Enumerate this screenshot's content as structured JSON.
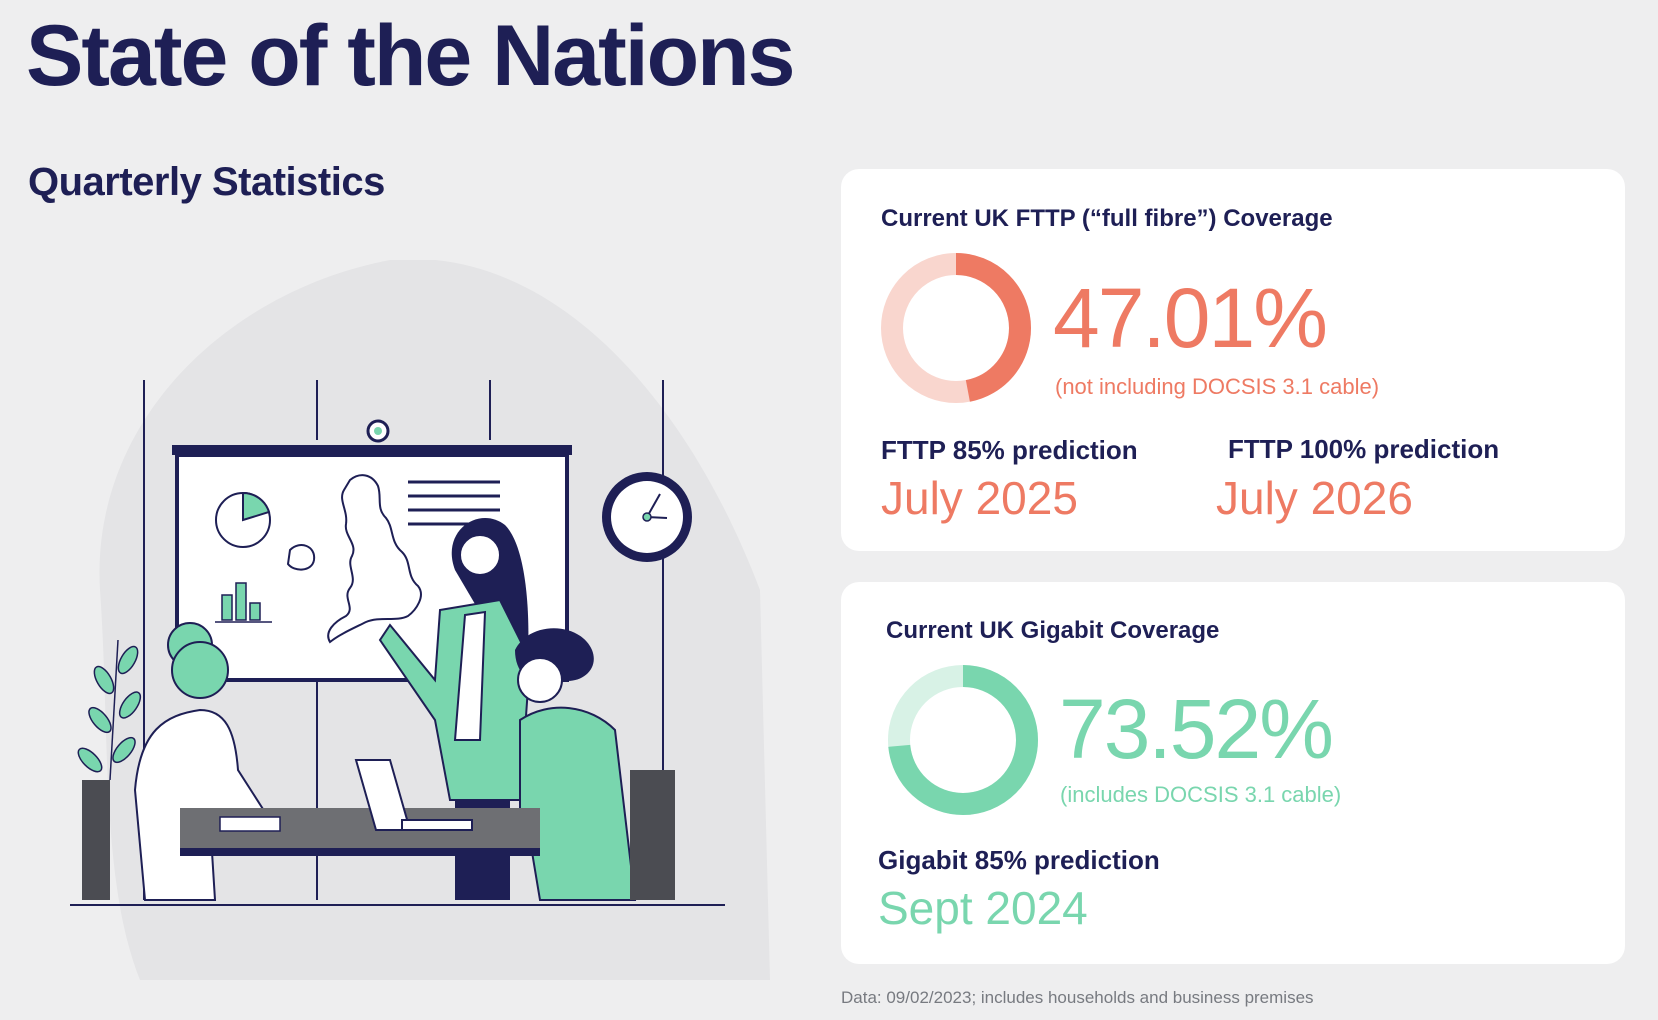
{
  "page": {
    "title": "State of the Nations",
    "subtitle": "Quarterly Statistics",
    "footer": "Data: 09/02/2023; includes households and business premises"
  },
  "colors": {
    "navy": "#1e1f55",
    "coral": "#ee7a63",
    "coral_light": "#f9d6ce",
    "mint": "#79d6ae",
    "mint_light": "#d8f2e6",
    "background": "#eeeeef"
  },
  "fttp": {
    "heading": "Current UK FTTP (“full fibre”) Coverage",
    "percent_text": "47.01%",
    "percent_value": 47.01,
    "note": "(not including DOCSIS 3.1 cable)",
    "pred85_label": "FTTP 85% prediction",
    "pred85_value": "July 2025",
    "pred100_label": "FTTP 100% prediction",
    "pred100_value": "July 2026"
  },
  "gigabit": {
    "heading": "Current UK Gigabit Coverage",
    "percent_text": "73.52%",
    "percent_value": 73.52,
    "note": "(includes DOCSIS 3.1 cable)",
    "pred85_label": "Gigabit 85% prediction",
    "pred85_value": "Sept 2024"
  },
  "illustration": {
    "icon": "office-presentation-illustration"
  }
}
